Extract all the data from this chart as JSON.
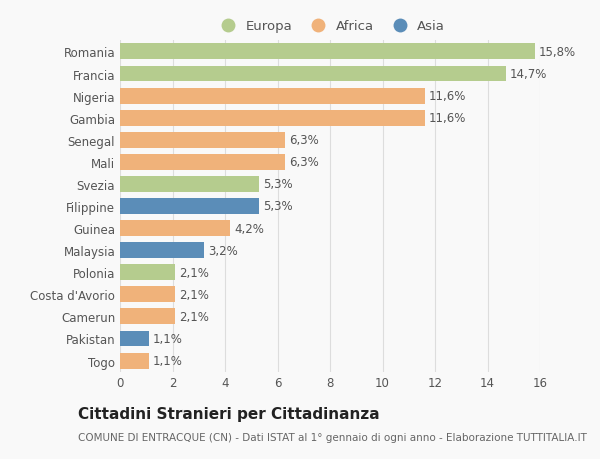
{
  "countries": [
    "Togo",
    "Pakistan",
    "Camerun",
    "Costa d'Avorio",
    "Polonia",
    "Malaysia",
    "Guinea",
    "Filippine",
    "Svezia",
    "Mali",
    "Senegal",
    "Gambia",
    "Nigeria",
    "Francia",
    "Romania"
  ],
  "values": [
    1.1,
    1.1,
    2.1,
    2.1,
    2.1,
    3.2,
    4.2,
    5.3,
    5.3,
    6.3,
    6.3,
    11.6,
    11.6,
    14.7,
    15.8
  ],
  "labels": [
    "1,1%",
    "1,1%",
    "2,1%",
    "2,1%",
    "2,1%",
    "3,2%",
    "4,2%",
    "5,3%",
    "5,3%",
    "6,3%",
    "6,3%",
    "11,6%",
    "11,6%",
    "14,7%",
    "15,8%"
  ],
  "continents": [
    "Africa",
    "Asia",
    "Africa",
    "Africa",
    "Europa",
    "Asia",
    "Africa",
    "Asia",
    "Europa",
    "Africa",
    "Africa",
    "Africa",
    "Africa",
    "Europa",
    "Europa"
  ],
  "colors": {
    "Europa": "#b5cc8e",
    "Africa": "#f0b27a",
    "Asia": "#5b8db8"
  },
  "title": "Cittadini Stranieri per Cittadinanza",
  "subtitle": "COMUNE DI ENTRACQUE (CN) - Dati ISTAT al 1° gennaio di ogni anno - Elaborazione TUTTITALIA.IT",
  "xlim": [
    0,
    16
  ],
  "xticks": [
    0,
    2,
    4,
    6,
    8,
    10,
    12,
    14,
    16
  ],
  "background_color": "#f9f9f9",
  "grid_color": "#dddddd",
  "bar_height": 0.72,
  "label_fontsize": 8.5,
  "title_fontsize": 11,
  "subtitle_fontsize": 7.5,
  "tick_fontsize": 8.5,
  "legend_fontsize": 9.5
}
